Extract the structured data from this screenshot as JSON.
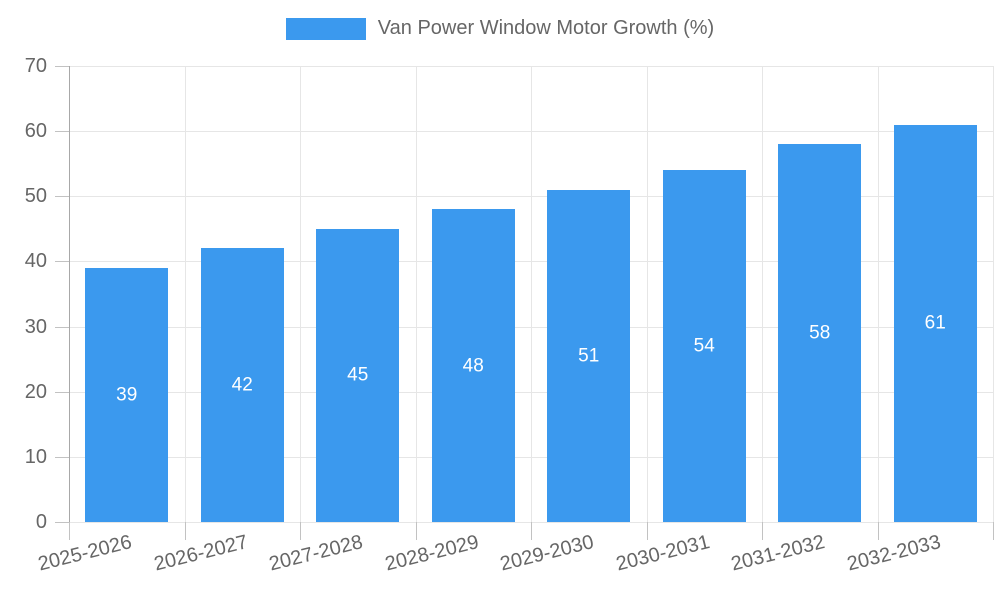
{
  "legend": {
    "label": "Van Power Window Motor Growth (%)"
  },
  "colors": {
    "bar": "#3b99ee",
    "grid": "#e6e6e6",
    "axis": "#a8a8a8",
    "tick_mark": "#c2c2c2",
    "tick_text": "#666666",
    "bar_label_text": "#ffffff",
    "background": "#ffffff"
  },
  "chart_data": {
    "type": "bar",
    "title": "Van Power Window Motor Growth (%)",
    "categories": [
      "2025-2026",
      "2026-2027",
      "2027-2028",
      "2028-2029",
      "2029-2030",
      "2030-2031",
      "2031-2032",
      "2032-2033"
    ],
    "values": [
      39,
      42,
      45,
      48,
      51,
      54,
      58,
      61
    ],
    "xlabel": "",
    "ylabel": "",
    "ylim": [
      0,
      70
    ],
    "ytick_step": 10,
    "yticks": [
      0,
      10,
      20,
      30,
      40,
      50,
      60,
      70
    ],
    "grid": true,
    "legend_position": "top-center",
    "bar_labels_inside": true
  }
}
